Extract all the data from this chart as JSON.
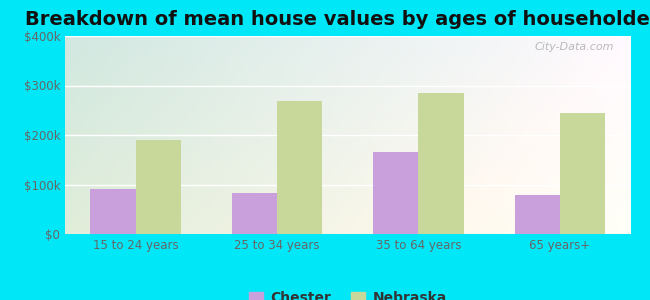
{
  "title": "Breakdown of mean house values by ages of householders",
  "categories": [
    "15 to 24 years",
    "25 to 34 years",
    "35 to 64 years",
    "65 years+"
  ],
  "chester_values": [
    90000,
    82000,
    165000,
    78000
  ],
  "nebraska_values": [
    190000,
    268000,
    285000,
    245000
  ],
  "chester_color": "#c9a0dc",
  "nebraska_color": "#c8d89a",
  "ylim": [
    0,
    400000
  ],
  "yticks": [
    0,
    100000,
    200000,
    300000,
    400000
  ],
  "ytick_labels": [
    "$0",
    "$100k",
    "$200k",
    "$300k",
    "$400k"
  ],
  "background_outer": "#00e8f8",
  "grid_color": "#ffffff",
  "title_fontsize": 14,
  "legend_labels": [
    "Chester",
    "Nebraska"
  ],
  "watermark": "City-Data.com",
  "bar_width": 0.32
}
